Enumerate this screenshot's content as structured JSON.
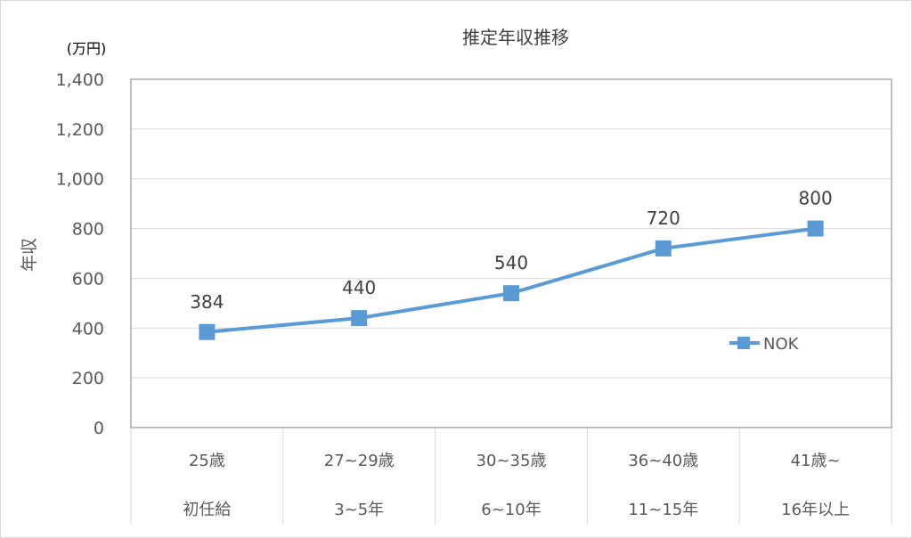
{
  "chart_data": {
    "type": "line",
    "title": "推定年収推移",
    "unit_label": "(万円)",
    "ylabel": "年収",
    "xlabel": "",
    "categories": [
      [
        "25歳",
        "初任給"
      ],
      [
        "27~29歳",
        "3~5年"
      ],
      [
        "30~35歳",
        "6~10年"
      ],
      [
        "36~40歳",
        "11~15年"
      ],
      [
        "41歳~",
        "16年以上"
      ]
    ],
    "series": [
      {
        "name": "NOK",
        "values": [
          384,
          440,
          540,
          720,
          800
        ],
        "color": "#5b9bd5"
      }
    ],
    "data_labels": [
      "384",
      "440",
      "540",
      "720",
      "800"
    ],
    "ylim": [
      0,
      1400
    ],
    "yticks": [
      0,
      200,
      400,
      600,
      800,
      1000,
      1200,
      1400
    ],
    "ytick_labels": [
      "0",
      "200",
      "400",
      "600",
      "800",
      "1,000",
      "1,200",
      "1,400"
    ],
    "grid": true,
    "legend_position": "right-middle"
  }
}
